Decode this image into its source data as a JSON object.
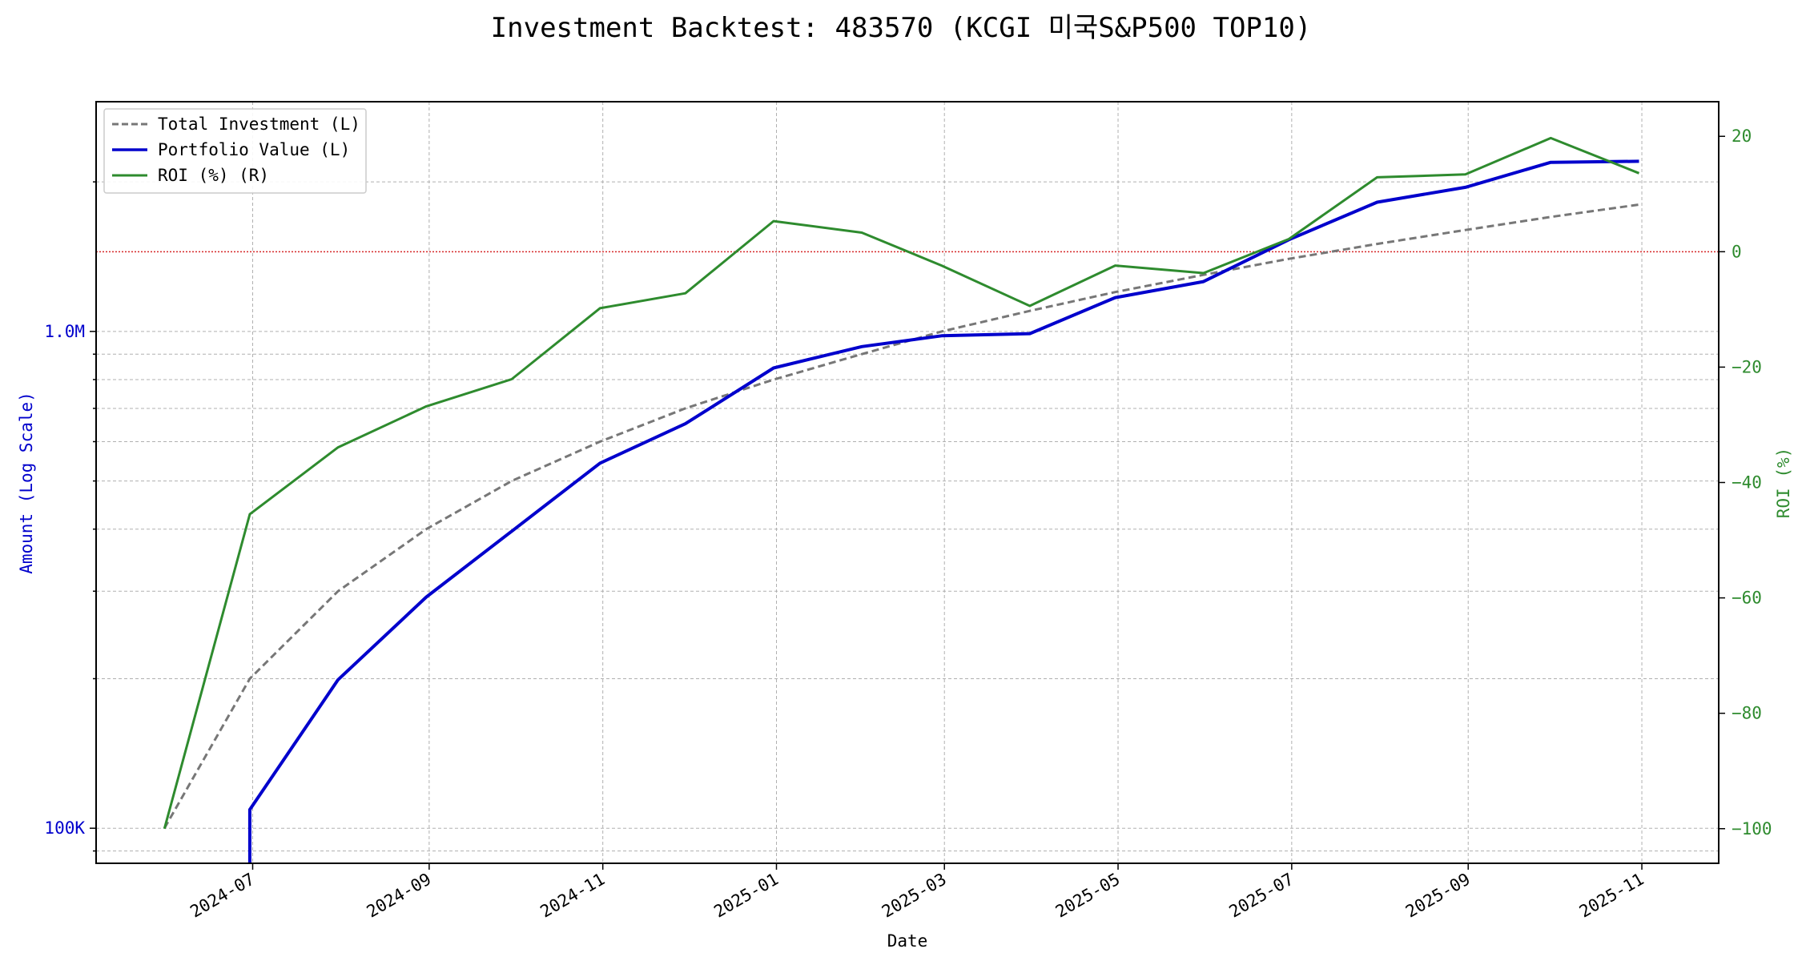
{
  "chart_data": {
    "type": "line",
    "title": "Investment Backtest: 483570 (KCGI 미국S&P500 TOP10)",
    "xlabel": "Date",
    "ylabel_left": "Amount (Log Scale)",
    "ylabel_right": "ROI (%)",
    "y_left_scale": "log",
    "y_left_range": [
      85000,
      2900000
    ],
    "y_right_range": [
      -106,
      26
    ],
    "x_range": [
      "2024-05-07",
      "2025-11-28"
    ],
    "grid": true,
    "legend_position": "top-left",
    "x_ticks": [
      "2024-07-01",
      "2024-09-01",
      "2024-11-01",
      "2025-01-01",
      "2025-03-01",
      "2025-05-01",
      "2025-07-01",
      "2025-09-01",
      "2025-11-01"
    ],
    "x_tick_labels": [
      "2024-07",
      "2024-09",
      "2024-11",
      "2025-01",
      "2025-03",
      "2025-05",
      "2025-07",
      "2025-09",
      "2025-11"
    ],
    "y_left_ticks": [
      100000,
      1000000
    ],
    "y_left_tick_labels": [
      "100K",
      "1.0M"
    ],
    "y_right_ticks": [
      20,
      0,
      -20,
      -40,
      -60,
      -80,
      -100
    ],
    "y_right_tick_labels": [
      "20",
      "0",
      "−20",
      "−40",
      "−60",
      "−80",
      "−100"
    ],
    "zero_line": {
      "axis": "right",
      "value": 0,
      "color": "#d62728"
    },
    "colors": {
      "total_investment": "#777777",
      "portfolio_value": "#0000cc",
      "roi": "#2e8b2e",
      "left_axis": "#0000cc",
      "right_axis": "#2e8b2e",
      "grid": "#b0b0b0"
    },
    "series": [
      {
        "name": "Total Investment (L)",
        "axis": "left",
        "style": "dashed",
        "x": [
          "2024-05-31",
          "2024-06-30",
          "2024-07-31",
          "2024-08-31",
          "2024-09-30",
          "2024-10-31",
          "2024-11-30",
          "2024-12-31",
          "2025-01-31",
          "2025-02-28",
          "2025-03-31",
          "2025-04-30",
          "2025-05-31",
          "2025-06-30",
          "2025-07-31",
          "2025-08-31",
          "2025-09-30",
          "2025-10-31"
        ],
        "values": [
          100000,
          200000,
          300000,
          400000,
          500000,
          600000,
          700000,
          800000,
          900000,
          1000000,
          1100000,
          1200000,
          1300000,
          1400000,
          1500000,
          1600000,
          1700000,
          1800000
        ]
      },
      {
        "name": "Portfolio Value (L)",
        "axis": "left",
        "style": "solid",
        "x": [
          "2024-05-31",
          "2024-06-30",
          "2024-06-30",
          "2024-07-31",
          "2024-08-31",
          "2024-09-30",
          "2024-10-31",
          "2024-11-30",
          "2024-12-31",
          "2025-01-31",
          "2025-02-28",
          "2025-03-31",
          "2025-04-30",
          "2025-05-31",
          "2025-06-30",
          "2025-07-31",
          "2025-08-31",
          "2025-09-30",
          "2025-10-31"
        ],
        "values": [
          0,
          0,
          109000,
          199000,
          292000,
          396000,
          543000,
          652000,
          844000,
          932000,
          980000,
          990000,
          1170000,
          1260000,
          1530000,
          1820000,
          1950000,
          2190000,
          2200000
        ]
      },
      {
        "name": "ROI (%) (R)",
        "axis": "right",
        "style": "solid",
        "x": [
          "2024-05-31",
          "2024-06-30",
          "2024-07-31",
          "2024-08-31",
          "2024-09-30",
          "2024-10-31",
          "2024-11-30",
          "2024-12-31",
          "2025-01-31",
          "2025-02-28",
          "2025-03-31",
          "2025-04-30",
          "2025-05-31",
          "2025-06-30",
          "2025-07-31",
          "2025-08-31",
          "2025-09-30",
          "2025-10-31"
        ],
        "values": [
          -100,
          -45.5,
          -33.9,
          -26.8,
          -22.1,
          -9.8,
          -7.2,
          5.3,
          3.3,
          -2.4,
          -9.4,
          -2.4,
          -3.7,
          2.2,
          12.9,
          13.4,
          19.7,
          13.6
        ]
      }
    ]
  }
}
